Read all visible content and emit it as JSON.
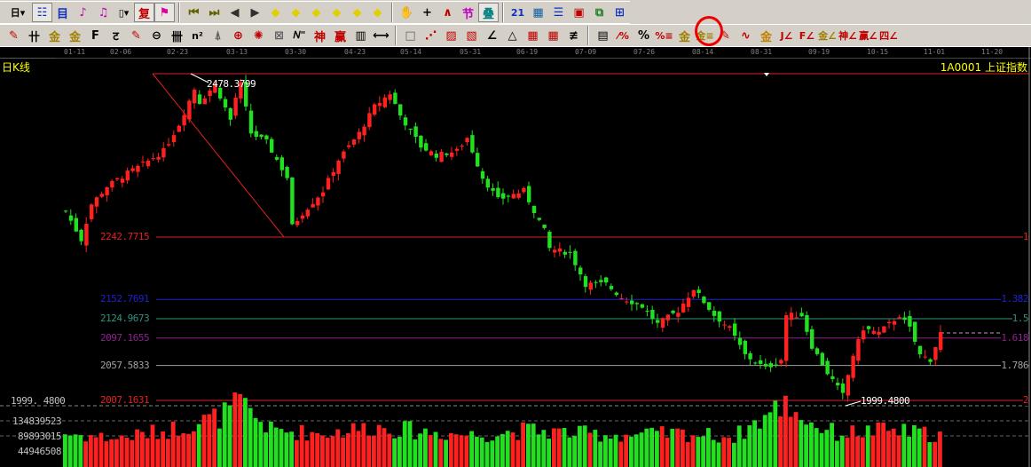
{
  "toolbar_row1": [
    {
      "name": "period-day-dropdown",
      "glyph": "日▾",
      "color": "#000"
    },
    {
      "name": "stock-info-icon",
      "glyph": "☷",
      "color": "#1030c0",
      "pressed": true
    },
    {
      "name": "f10-icon",
      "glyph": "目",
      "color": "#1030c0"
    },
    {
      "name": "indicator-3-icon",
      "glyph": "♪",
      "color": "#c000c0"
    },
    {
      "name": "indicator-9-icon",
      "glyph": "♫",
      "color": "#c000c0"
    },
    {
      "name": "candle-style-dropdown",
      "glyph": "▯▾",
      "color": "#000"
    },
    {
      "name": "restore-icon",
      "glyph": "复",
      "color": "#c00000",
      "pressed": true
    },
    {
      "name": "flag-icon",
      "glyph": "⚑",
      "color": "#e000a0",
      "pressed": true
    },
    {
      "sep": true
    },
    {
      "name": "first-icon",
      "glyph": "⏮",
      "color": "#606000"
    },
    {
      "name": "last-icon",
      "glyph": "⏭",
      "color": "#606000"
    },
    {
      "name": "prev-icon",
      "glyph": "◀",
      "color": "#303030"
    },
    {
      "name": "next-icon",
      "glyph": "▶",
      "color": "#303030"
    },
    {
      "name": "zoom-left-icon",
      "glyph": "◆",
      "color": "#e0d000"
    },
    {
      "name": "zoom-right-icon",
      "glyph": "◆",
      "color": "#e0d000"
    },
    {
      "name": "zoom-in-icon",
      "glyph": "◆",
      "color": "#e0d000"
    },
    {
      "name": "zoom-out-icon",
      "glyph": "◆",
      "color": "#e0d000"
    },
    {
      "name": "expand-icon",
      "glyph": "◆",
      "color": "#e0d000"
    },
    {
      "name": "move-icon",
      "glyph": "◆",
      "color": "#e0d000"
    },
    {
      "sep": true
    },
    {
      "name": "hand-icon",
      "glyph": "✋",
      "color": "#000"
    },
    {
      "name": "crosshair-icon",
      "glyph": "+",
      "color": "#000"
    },
    {
      "name": "line-icon",
      "glyph": "∧",
      "color": "#c00000"
    },
    {
      "name": "section-icon",
      "glyph": "节",
      "color": "#c000c0"
    },
    {
      "name": "overlay-icon",
      "glyph": "叠",
      "color": "#008080",
      "pressed": true
    },
    {
      "sep": true
    },
    {
      "name": "calendar-icon",
      "glyph": "21",
      "color": "#1030c0"
    },
    {
      "name": "calculator-icon",
      "glyph": "▦",
      "color": "#1060a0"
    },
    {
      "name": "notes-icon",
      "glyph": "☰",
      "color": "#1030c0"
    },
    {
      "name": "save-icon",
      "glyph": "▣",
      "color": "#c00000"
    },
    {
      "name": "network-icon",
      "glyph": "⧉",
      "color": "#208020"
    },
    {
      "name": "connect-icon",
      "glyph": "⊞",
      "color": "#1030c0"
    }
  ],
  "toolbar_row2": [
    {
      "name": "draw-pen-icon",
      "glyph": "✎",
      "color": "#c00000"
    },
    {
      "name": "parallel-lines-icon",
      "glyph": "卄",
      "color": "#000"
    },
    {
      "name": "golden-ratio-icon",
      "glyph": "金",
      "color": "#a08000"
    },
    {
      "name": "golden-ratio-2-icon",
      "glyph": "金",
      "color": "#a08000"
    },
    {
      "name": "fibonacci-icon",
      "glyph": "F",
      "color": "#000"
    },
    {
      "name": "spiral-icon",
      "glyph": "ट",
      "color": "#000"
    },
    {
      "name": "eraser-icon",
      "glyph": "✎",
      "color": "#c00000"
    },
    {
      "name": "circle-icon",
      "glyph": "⊖",
      "color": "#000"
    },
    {
      "name": "cycle-lines-icon",
      "glyph": "卌",
      "color": "#000"
    },
    {
      "name": "square-cycle-icon",
      "glyph": "n²",
      "color": "#000"
    },
    {
      "name": "arrow-icon",
      "glyph": "⍋",
      "color": "#606060"
    },
    {
      "name": "target-icon",
      "glyph": "⊕",
      "color": "#c00000"
    },
    {
      "name": "gann-icon",
      "glyph": "✺",
      "color": "#c00000"
    },
    {
      "name": "gann-box-icon",
      "glyph": "⊠",
      "color": "#606060"
    },
    {
      "name": "wave-icon",
      "glyph": "𝑁\"",
      "color": "#000"
    },
    {
      "name": "god-icon",
      "glyph": "神",
      "color": "#c00000"
    },
    {
      "name": "win-icon",
      "glyph": "赢",
      "color": "#c00000"
    },
    {
      "name": "ruler-icon",
      "glyph": "▥",
      "color": "#000"
    },
    {
      "name": "measure-icon",
      "glyph": "⟷",
      "color": "#000"
    },
    {
      "sep": true
    },
    {
      "name": "rectangle-icon",
      "glyph": "□",
      "color": "#606060"
    },
    {
      "name": "fan-icon",
      "glyph": "⋰",
      "color": "#c00000"
    },
    {
      "name": "gann-fan-icon",
      "glyph": "▨",
      "color": "#c00000"
    },
    {
      "name": "gann-grid-icon",
      "glyph": "▧",
      "color": "#c00000"
    },
    {
      "name": "angle-icon",
      "glyph": "∠",
      "color": "#000"
    },
    {
      "name": "triangle-icon",
      "glyph": "△",
      "color": "#000"
    },
    {
      "name": "grid-icon",
      "glyph": "▦",
      "color": "#c00000"
    },
    {
      "name": "grid-2-icon",
      "glyph": "▦",
      "color": "#c00000"
    },
    {
      "name": "slant-lines-icon",
      "glyph": "≢",
      "color": "#000"
    },
    {
      "sep": true
    },
    {
      "name": "bars-icon",
      "glyph": "▤",
      "color": "#000"
    },
    {
      "name": "percent-fan-icon",
      "glyph": "⁄%",
      "color": "#c00000"
    },
    {
      "name": "percent-icon",
      "glyph": "%",
      "color": "#000"
    },
    {
      "name": "percent-lines-icon",
      "glyph": "%≡",
      "color": "#c00000"
    },
    {
      "name": "gold-circle-icon",
      "glyph": "金",
      "color": "#a08000"
    },
    {
      "name": "gold-lines-icon",
      "glyph": "金≡",
      "color": "#a08000"
    },
    {
      "name": "fill-icon",
      "glyph": "✎",
      "color": "#c00000"
    },
    {
      "name": "wave-ruler-icon",
      "glyph": "∿",
      "color": "#c00000"
    },
    {
      "name": "gold-box-icon",
      "glyph": "金",
      "color": "#c08000"
    },
    {
      "name": "j-fan-icon",
      "glyph": "J∠",
      "color": "#c00000"
    },
    {
      "name": "f-fan-icon",
      "glyph": "F∠",
      "color": "#c00000"
    },
    {
      "name": "gold-fan-icon",
      "glyph": "金∠",
      "color": "#a08000"
    },
    {
      "name": "god-fan-icon",
      "glyph": "神∠",
      "color": "#c00000"
    },
    {
      "name": "win-fan-icon",
      "glyph": "赢∠",
      "color": "#c00000"
    },
    {
      "name": "four-fan-icon",
      "glyph": "四∠",
      "color": "#c00000"
    }
  ],
  "chart": {
    "period_label": "日K线",
    "symbol_title": "1A0001 上证指数",
    "dates": [
      "01-11",
      "02-06",
      "02-23",
      "03-13",
      "03-30",
      "04-23",
      "05-14",
      "05-31",
      "06-19",
      "07-09",
      "07-26",
      "08-14",
      "08-31",
      "09-19",
      "10-15",
      "11-01",
      "11-20"
    ],
    "high_annotation": "2478.3799",
    "low_annotation": "1999.4800",
    "low_axis_label": "1999. 4800",
    "levels": [
      {
        "price": "2478.3799",
        "ratio": "",
        "color": "#e02020"
      },
      {
        "price": "2242.7715",
        "ratio": "1",
        "color": "#e02020"
      },
      {
        "price": "2152.7691",
        "ratio": "1.382",
        "color": "#2020d0"
      },
      {
        "price": "2124.9673",
        "ratio": "1.5",
        "color": "#309080"
      },
      {
        "price": "2097.1655",
        "ratio": "1.618",
        "color": "#902090"
      },
      {
        "price": "2057.5833",
        "ratio": "1.786",
        "color": "#a0a0a0"
      },
      {
        "price": "2007.1631",
        "ratio": "2",
        "color": "#e02020"
      }
    ],
    "volume_ticks": [
      "134839523",
      "89893015",
      "44946508"
    ],
    "colors": {
      "up": "#ff2020",
      "down": "#20e020",
      "background": "#000000",
      "text": "#ffff00"
    }
  },
  "chart_data": {
    "type": "candlestick",
    "close_keypoints": [
      [
        0,
        2279.9
      ],
      [
        3,
        2238.9
      ],
      [
        5,
        2290.2
      ],
      [
        8,
        2315.8
      ],
      [
        12,
        2335.0
      ],
      [
        15,
        2347.8
      ],
      [
        19,
        2367.0
      ],
      [
        22,
        2405.4
      ],
      [
        25,
        2456.6
      ],
      [
        26,
        2437.4
      ],
      [
        29,
        2463.0
      ],
      [
        32,
        2411.8
      ],
      [
        33,
        2443.8
      ],
      [
        34,
        2463.0
      ],
      [
        36,
        2392.6
      ],
      [
        39,
        2379.8
      ],
      [
        43,
        2328.6
      ],
      [
        44,
        2258.2
      ],
      [
        46,
        2277.4
      ],
      [
        50,
        2309.4
      ],
      [
        53,
        2354.2
      ],
      [
        57,
        2392.6
      ],
      [
        60,
        2431.0
      ],
      [
        63,
        2450.2
      ],
      [
        65,
        2418.2
      ],
      [
        69,
        2373.4
      ],
      [
        72,
        2360.6
      ],
      [
        76,
        2367.0
      ],
      [
        78,
        2386.2
      ],
      [
        81,
        2328.6
      ],
      [
        84,
        2296.6
      ],
      [
        89,
        2309.4
      ],
      [
        93,
        2251.8
      ],
      [
        94,
        2226.1
      ],
      [
        98,
        2219.7
      ],
      [
        101,
        2174.9
      ],
      [
        105,
        2174.9
      ],
      [
        108,
        2155.7
      ],
      [
        112,
        2142.9
      ],
      [
        115,
        2117.3
      ],
      [
        119,
        2136.5
      ],
      [
        122,
        2168.5
      ],
      [
        126,
        2130.1
      ],
      [
        129,
        2110.9
      ],
      [
        132,
        2072.5
      ],
      [
        136,
        2053.3
      ],
      [
        139,
        2066.1
      ],
      [
        140,
        2130.1
      ],
      [
        143,
        2130.1
      ],
      [
        145,
        2085.3
      ],
      [
        148,
        2046.9
      ],
      [
        151,
        2014.9
      ],
      [
        153,
        2072.5
      ],
      [
        155,
        2110.9
      ],
      [
        158,
        2104.5
      ],
      [
        162,
        2130.1
      ],
      [
        164,
        2110.9
      ],
      [
        166,
        2072.5
      ],
      [
        168,
        2066.1
      ],
      [
        170,
        2104.5
      ]
    ],
    "volume_keypoints": [
      [
        0,
        100000000
      ],
      [
        10,
        85000000
      ],
      [
        20,
        110000000
      ],
      [
        30,
        150000000
      ],
      [
        34,
        190000000
      ],
      [
        40,
        110000000
      ],
      [
        50,
        100000000
      ],
      [
        60,
        120000000
      ],
      [
        70,
        105000000
      ],
      [
        80,
        95000000
      ],
      [
        90,
        110000000
      ],
      [
        100,
        100000000
      ],
      [
        110,
        95000000
      ],
      [
        120,
        100000000
      ],
      [
        130,
        90000000
      ],
      [
        140,
        190000000
      ],
      [
        145,
        130000000
      ],
      [
        150,
        100000000
      ],
      [
        160,
        110000000
      ],
      [
        170,
        95000000
      ]
    ],
    "price_range": [
      1999.48,
      2478.3799
    ]
  }
}
